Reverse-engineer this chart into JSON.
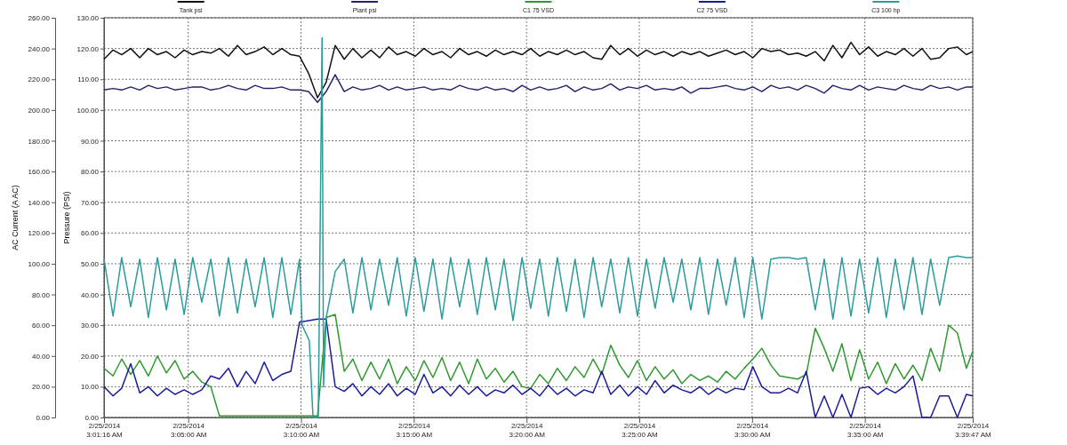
{
  "chart_data": {
    "type": "line",
    "ylabel": "AC Current (A AC)",
    "y2label": "Pressure (PSI)",
    "xlim": [
      "2014-02-25T03:01:16",
      "2014-02-25T03:39:47"
    ],
    "xticks": [
      {
        "value": "2014-02-25T03:01:16",
        "label": "2/25/2014\n3:01:16 AM"
      },
      {
        "value": "2014-02-25T03:05",
        "label": "2/25/2014\n3:05:00 AM"
      },
      {
        "value": "2014-02-25T03:10",
        "label": "2/25/2014\n3:10:00 AM"
      },
      {
        "value": "2014-02-25T03:15",
        "label": "2/25/2014\n3:15:00 AM"
      },
      {
        "value": "2014-02-25T03:20",
        "label": "2/25/2014\n3:20:00 AM"
      },
      {
        "value": "2014-02-25T03:25",
        "label": "2/25/2014\n3:25:00 AM"
      },
      {
        "value": "2014-02-25T03:30",
        "label": "2/25/2014\n3:30:00 AM"
      },
      {
        "value": "2014-02-25T03:35",
        "label": "2/25/2014\n3:35:00 AM"
      },
      {
        "value": "2014-02-25T03:39:47",
        "label": "2/25/2014\n3:39:47 AM"
      }
    ],
    "ylim": [
      0,
      260
    ],
    "yticks": [
      {
        "value": 0,
        "label": "0.00"
      },
      {
        "value": 20,
        "label": "20.00"
      },
      {
        "value": 40,
        "label": "40.00"
      },
      {
        "value": 60,
        "label": "60.00"
      },
      {
        "value": 80,
        "label": "80.00"
      },
      {
        "value": 100,
        "label": "100.00"
      },
      {
        "value": 120,
        "label": "120.00"
      },
      {
        "value": 140,
        "label": "140.00"
      },
      {
        "value": 160,
        "label": "160.00"
      },
      {
        "value": 180,
        "label": "180.00"
      },
      {
        "value": 200,
        "label": "200.00"
      },
      {
        "value": 220,
        "label": "220.00"
      },
      {
        "value": 240,
        "label": "240.00"
      },
      {
        "value": 260,
        "label": "260.00"
      }
    ],
    "y2lim": [
      0,
      130
    ],
    "y2ticks": [
      {
        "value": 0,
        "label": "0.00"
      },
      {
        "value": 10,
        "label": "10.00"
      },
      {
        "value": 20,
        "label": "20.00"
      },
      {
        "value": 30,
        "label": "30.00"
      },
      {
        "value": 40,
        "label": "40.00"
      },
      {
        "value": 50,
        "label": "50.00"
      },
      {
        "value": 60,
        "label": "60.00"
      },
      {
        "value": 70,
        "label": "70.00"
      },
      {
        "value": 80,
        "label": "80.00"
      },
      {
        "value": 90,
        "label": "90.00"
      },
      {
        "value": 100,
        "label": "100.00"
      },
      {
        "value": 110,
        "label": "110.00"
      },
      {
        "value": 120,
        "label": "120.00"
      },
      {
        "value": 130,
        "label": "130.00"
      }
    ],
    "grid": true,
    "legend": "top",
    "line_style": "solid",
    "x": [
      "2014-02-25T03:01:16",
      "2014-02-25T03:01:40",
      "2014-02-25T03:02:03",
      "2014-02-25T03:02:27",
      "2014-02-25T03:02:51",
      "2014-02-25T03:03:14",
      "2014-02-25T03:03:38",
      "2014-02-25T03:04:02",
      "2014-02-25T03:04:25",
      "2014-02-25T03:04:49",
      "2014-02-25T03:05:12",
      "2014-02-25T03:05:36",
      "2014-02-25T03:06:00",
      "2014-02-25T03:06:23",
      "2014-02-25T03:06:47",
      "2014-02-25T03:07:11",
      "2014-02-25T03:07:34",
      "2014-02-25T03:07:58",
      "2014-02-25T03:08:22",
      "2014-02-25T03:08:45",
      "2014-02-25T03:09:09",
      "2014-02-25T03:09:33",
      "2014-02-25T03:09:56",
      "2014-02-25T03:10:20",
      "2014-02-25T03:10:44",
      "2014-02-25T03:11:07",
      "2014-02-25T03:11:31",
      "2014-02-25T03:11:55",
      "2014-02-25T03:12:18",
      "2014-02-25T03:12:42",
      "2014-02-25T03:13:06",
      "2014-02-25T03:13:29",
      "2014-02-25T03:13:53",
      "2014-02-25T03:14:16",
      "2014-02-25T03:14:40",
      "2014-02-25T03:15:04",
      "2014-02-25T03:15:27",
      "2014-02-25T03:15:51",
      "2014-02-25T03:16:15",
      "2014-02-25T03:16:38",
      "2014-02-25T03:17:02",
      "2014-02-25T03:17:26",
      "2014-02-25T03:17:49",
      "2014-02-25T03:18:13",
      "2014-02-25T03:18:37",
      "2014-02-25T03:19:00",
      "2014-02-25T03:19:24",
      "2014-02-25T03:19:48",
      "2014-02-25T03:20:11",
      "2014-02-25T03:20:35",
      "2014-02-25T03:20:58",
      "2014-02-25T03:21:22",
      "2014-02-25T03:21:46",
      "2014-02-25T03:22:09",
      "2014-02-25T03:22:33",
      "2014-02-25T03:22:57",
      "2014-02-25T03:23:20",
      "2014-02-25T03:23:44",
      "2014-02-25T03:24:08",
      "2014-02-25T03:24:31",
      "2014-02-25T03:24:55",
      "2014-02-25T03:25:19",
      "2014-02-25T03:25:42",
      "2014-02-25T03:26:06",
      "2014-02-25T03:26:30",
      "2014-02-25T03:26:53",
      "2014-02-25T03:27:17",
      "2014-02-25T03:27:41",
      "2014-02-25T03:28:04",
      "2014-02-25T03:28:28",
      "2014-02-25T03:28:51",
      "2014-02-25T03:29:15",
      "2014-02-25T03:29:39",
      "2014-02-25T03:30:02",
      "2014-02-25T03:30:26",
      "2014-02-25T03:30:50",
      "2014-02-25T03:31:13",
      "2014-02-25T03:31:37",
      "2014-02-25T03:32:01",
      "2014-02-25T03:32:24",
      "2014-02-25T03:32:48",
      "2014-02-25T03:33:12",
      "2014-02-25T03:33:35",
      "2014-02-25T03:33:59",
      "2014-02-25T03:34:23",
      "2014-02-25T03:34:46",
      "2014-02-25T03:35:10",
      "2014-02-25T03:35:34",
      "2014-02-25T03:35:57",
      "2014-02-25T03:36:21",
      "2014-02-25T03:36:44",
      "2014-02-25T03:37:08",
      "2014-02-25T03:37:32",
      "2014-02-25T03:37:55",
      "2014-02-25T03:38:19",
      "2014-02-25T03:38:43",
      "2014-02-25T03:39:06",
      "2014-02-25T03:39:30",
      "2014-02-25T03:39:47"
    ],
    "series": [
      {
        "name": "Tank psi",
        "color": "#111111",
        "axis": "y2",
        "values": [
          116.5,
          119.5,
          118,
          120,
          117,
          120,
          118,
          119,
          117,
          119.5,
          118,
          119,
          118.5,
          120,
          117.5,
          121,
          118,
          119,
          120.5,
          118,
          120,
          118,
          117.5,
          112,
          104,
          109,
          121,
          116.5,
          120,
          117,
          119.5,
          117,
          120.5,
          118,
          119,
          117.5,
          120,
          118,
          119,
          117,
          120,
          118,
          119,
          117.5,
          119.5,
          118,
          119,
          118,
          120,
          117.5,
          119,
          118,
          119.5,
          118,
          119,
          117,
          116.5,
          121,
          118,
          120,
          117.5,
          119.5,
          118,
          119,
          117.5,
          119,
          118,
          119,
          117.5,
          118.5,
          119.5,
          118,
          119,
          117,
          120,
          119,
          119.5,
          118,
          118.5,
          117.5,
          119,
          116,
          121,
          117,
          122,
          118,
          120.5,
          117.5,
          119,
          118,
          120,
          117.5,
          120,
          116.5,
          117,
          120,
          120.5,
          118,
          119
        ]
      },
      {
        "name": "Plant psi",
        "color": "#22226e",
        "axis": "y2",
        "values": [
          106.5,
          107,
          106.5,
          107.5,
          106.5,
          108,
          107,
          107.5,
          106.5,
          107,
          107.5,
          107.5,
          106.5,
          107,
          108,
          107,
          106.5,
          108,
          107,
          107,
          107.5,
          106.5,
          106.5,
          106,
          102.5,
          106,
          111.5,
          106,
          107.5,
          106.5,
          107,
          108,
          106.5,
          107.5,
          106.5,
          107,
          107.5,
          106.5,
          107,
          106.5,
          108,
          107,
          106.5,
          107.5,
          106.5,
          107,
          106,
          108,
          106.5,
          107.5,
          106.5,
          107,
          108,
          106,
          107.5,
          106.5,
          107,
          108.5,
          106.5,
          107.5,
          107,
          108,
          106.5,
          107,
          106.5,
          107.5,
          105.5,
          107,
          107,
          107.5,
          108,
          107,
          106.5,
          107.5,
          106,
          108,
          107,
          107.5,
          106.5,
          108,
          107,
          105.5,
          108,
          107,
          106.5,
          108,
          106.5,
          107.5,
          107,
          106.5,
          108,
          107,
          106.5,
          108,
          107,
          107.5,
          106.5,
          107.5,
          107.5
        ]
      },
      {
        "name": "C1 75 VSD",
        "color": "#2e9a2e",
        "values": [
          32,
          27,
          38,
          28,
          37,
          27,
          40,
          29,
          37,
          25,
          30,
          23,
          20,
          1,
          1,
          1,
          1,
          1,
          1,
          1,
          1,
          1,
          1,
          1,
          1,
          65,
          67,
          30,
          38,
          24,
          36,
          25,
          38,
          22,
          33,
          24,
          37,
          26,
          39,
          24,
          36,
          22,
          38,
          25,
          32,
          23,
          30,
          20,
          19,
          28,
          22,
          32,
          24,
          33,
          26,
          38,
          28,
          47,
          34,
          26,
          37,
          24,
          33,
          25,
          31,
          22,
          28,
          24,
          27,
          23,
          30,
          25,
          32,
          38,
          45,
          34,
          27,
          26,
          25,
          28,
          58,
          45,
          30,
          48,
          24,
          44,
          25,
          36,
          22,
          35,
          25,
          34,
          24,
          45,
          30,
          60,
          55,
          32,
          43
        ]
      },
      {
        "name": "C2 75 VSD",
        "color": "#1c1c9a",
        "values": [
          20,
          14,
          19,
          35,
          16,
          20,
          14,
          19,
          15,
          18,
          15,
          18,
          27,
          25,
          32,
          20,
          30,
          22,
          36,
          24,
          28,
          30,
          62,
          63,
          64,
          64,
          20,
          17,
          22,
          14,
          20,
          15,
          22,
          14,
          19,
          15,
          28,
          16,
          20,
          14,
          21,
          15,
          20,
          14,
          18,
          16,
          21,
          15,
          19,
          14,
          21,
          15,
          19,
          14,
          18,
          16,
          30,
          15,
          21,
          14,
          20,
          15,
          24,
          16,
          21,
          18,
          16,
          20,
          15,
          19,
          16,
          19,
          18,
          33,
          20,
          16,
          16,
          19,
          16,
          30,
          0,
          14,
          0,
          15,
          0,
          19,
          20,
          15,
          19,
          16,
          20,
          27,
          0,
          0,
          14,
          14,
          0,
          15,
          14
        ]
      },
      {
        "name": "C3 100 hp",
        "color": "#2a9c9c",
        "x": [
          "2014-02-25T03:01:16",
          "2014-02-25T03:01:40",
          "2014-02-25T03:02:03",
          "2014-02-25T03:02:27",
          "2014-02-25T03:02:51",
          "2014-02-25T03:03:14",
          "2014-02-25T03:03:38",
          "2014-02-25T03:04:02",
          "2014-02-25T03:04:25",
          "2014-02-25T03:04:49",
          "2014-02-25T03:05:12",
          "2014-02-25T03:05:36",
          "2014-02-25T03:06:00",
          "2014-02-25T03:06:23",
          "2014-02-25T03:06:47",
          "2014-02-25T03:07:11",
          "2014-02-25T03:07:34",
          "2014-02-25T03:07:58",
          "2014-02-25T03:08:22",
          "2014-02-25T03:08:45",
          "2014-02-25T03:09:09",
          "2014-02-25T03:09:33",
          "2014-02-25T03:09:56",
          "2014-02-25T03:10:03",
          "2014-02-25T03:10:22",
          "2014-02-25T03:10:32",
          "2014-02-25T03:10:46",
          "2014-02-25T03:10:56",
          "2014-02-25T03:11:00",
          "2014-02-25T03:11:07",
          "2014-02-25T03:11:31",
          "2014-02-25T03:11:55",
          "2014-02-25T03:12:18",
          "2014-02-25T03:12:42",
          "2014-02-25T03:13:06",
          "2014-02-25T03:13:29",
          "2014-02-25T03:13:53",
          "2014-02-25T03:14:16",
          "2014-02-25T03:14:40",
          "2014-02-25T03:15:04",
          "2014-02-25T03:15:27",
          "2014-02-25T03:15:51",
          "2014-02-25T03:16:15",
          "2014-02-25T03:16:38",
          "2014-02-25T03:17:02",
          "2014-02-25T03:17:26",
          "2014-02-25T03:17:49",
          "2014-02-25T03:18:13",
          "2014-02-25T03:18:37",
          "2014-02-25T03:19:00",
          "2014-02-25T03:19:24",
          "2014-02-25T03:19:48",
          "2014-02-25T03:20:11",
          "2014-02-25T03:20:35",
          "2014-02-25T03:20:58",
          "2014-02-25T03:21:22",
          "2014-02-25T03:21:46",
          "2014-02-25T03:22:09",
          "2014-02-25T03:22:33",
          "2014-02-25T03:22:57",
          "2014-02-25T03:23:20",
          "2014-02-25T03:23:44",
          "2014-02-25T03:24:08",
          "2014-02-25T03:24:31",
          "2014-02-25T03:24:55",
          "2014-02-25T03:25:19",
          "2014-02-25T03:25:42",
          "2014-02-25T03:26:06",
          "2014-02-25T03:26:30",
          "2014-02-25T03:26:53",
          "2014-02-25T03:27:17",
          "2014-02-25T03:27:41",
          "2014-02-25T03:28:04",
          "2014-02-25T03:28:28",
          "2014-02-25T03:28:51",
          "2014-02-25T03:29:15",
          "2014-02-25T03:29:39",
          "2014-02-25T03:30:02",
          "2014-02-25T03:30:26",
          "2014-02-25T03:30:50",
          "2014-02-25T03:31:13",
          "2014-02-25T03:31:37",
          "2014-02-25T03:32:01",
          "2014-02-25T03:32:24",
          "2014-02-25T03:32:48",
          "2014-02-25T03:33:12",
          "2014-02-25T03:33:35",
          "2014-02-25T03:33:59",
          "2014-02-25T03:34:23",
          "2014-02-25T03:34:46",
          "2014-02-25T03:35:10",
          "2014-02-25T03:35:34",
          "2014-02-25T03:35:57",
          "2014-02-25T03:36:21",
          "2014-02-25T03:36:44",
          "2014-02-25T03:37:08",
          "2014-02-25T03:37:32",
          "2014-02-25T03:37:55",
          "2014-02-25T03:38:19",
          "2014-02-25T03:38:43",
          "2014-02-25T03:39:06",
          "2014-02-25T03:39:30",
          "2014-02-25T03:39:47"
        ],
        "values": [
          103,
          66,
          104,
          72,
          103,
          65,
          104,
          70,
          103,
          67,
          104,
          75,
          103,
          66,
          104,
          68,
          103,
          72,
          104,
          65,
          104,
          67,
          103,
          60,
          50,
          0,
          0,
          247,
          20,
          65,
          95,
          103,
          68,
          104,
          70,
          103,
          73,
          104,
          66,
          104,
          69,
          103,
          64,
          104,
          72,
          103,
          67,
          104,
          70,
          103,
          63,
          104,
          71,
          103,
          66,
          104,
          69,
          103,
          65,
          104,
          72,
          103,
          68,
          104,
          66,
          103,
          71,
          104,
          75,
          103,
          70,
          104,
          67,
          103,
          73,
          104,
          65,
          104,
          64,
          103,
          104,
          104,
          103,
          104,
          70,
          103,
          64,
          104,
          66,
          103,
          68,
          104,
          65,
          103,
          70,
          104,
          67,
          103,
          73,
          104,
          105,
          104,
          104
        ]
      }
    ]
  }
}
